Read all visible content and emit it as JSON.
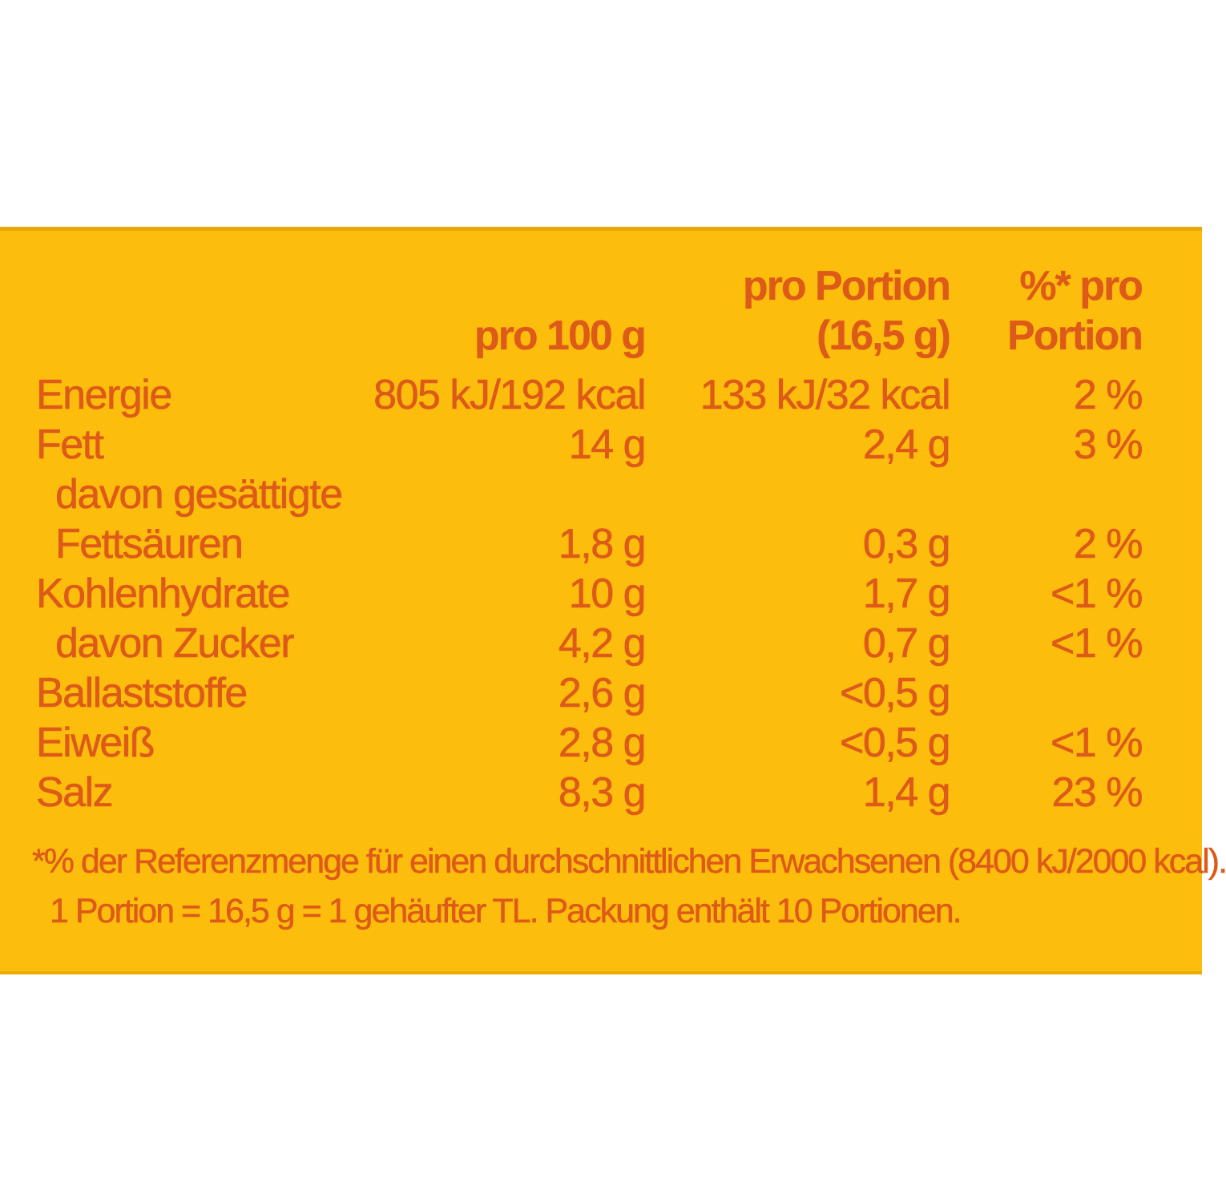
{
  "panel": {
    "background_color": "#FCBD0D",
    "text_color": "#DD5A18"
  },
  "table": {
    "header": {
      "col1_line1": "",
      "col1_line2": "pro 100 g",
      "col2_line1": "pro Portion",
      "col2_line2": "(16,5 g)",
      "col3_line1": "%* pro",
      "col3_line2": "Portion"
    },
    "rows": [
      {
        "label": "Energie",
        "per100": "805 kJ/192 kcal",
        "perPortion": "133 kJ/32 kcal",
        "percent": "2 %",
        "indent": false
      },
      {
        "label": "Fett",
        "per100": "14 g",
        "perPortion": "2,4 g",
        "percent": "3 %",
        "indent": false
      },
      {
        "label": "davon gesättigte",
        "per100": "",
        "perPortion": "",
        "percent": "",
        "indent": true
      },
      {
        "label": "Fettsäuren",
        "per100": "1,8 g",
        "perPortion": "0,3 g",
        "percent": "2 %",
        "indent": true
      },
      {
        "label": "Kohlenhydrate",
        "per100": "10 g",
        "perPortion": "1,7 g",
        "percent": "<1 %",
        "indent": false
      },
      {
        "label": "davon Zucker",
        "per100": "4,2 g",
        "perPortion": "0,7 g",
        "percent": "<1 %",
        "indent": true
      },
      {
        "label": "Ballaststoffe",
        "per100": "2,6 g",
        "perPortion": "<0,5 g",
        "percent": "",
        "indent": false
      },
      {
        "label": "Eiweiß",
        "per100": "2,8 g",
        "perPortion": "<0,5 g",
        "percent": "<1 %",
        "indent": false
      },
      {
        "label": "Salz",
        "per100": "8,3 g",
        "perPortion": "1,4 g",
        "percent": "23 %",
        "indent": false
      }
    ]
  },
  "footnotes": {
    "line1": "*% der Referenzmenge für einen durchschnittlichen Erwachsenen (8400 kJ/2000 kcal).",
    "line2": "1 Portion = 16,5 g = 1 gehäufter TL. Packung enthält 10 Portionen."
  }
}
